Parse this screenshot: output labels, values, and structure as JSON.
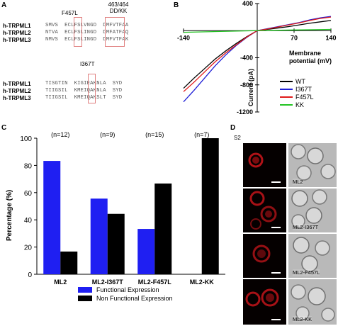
{
  "panels": {
    "a": "A",
    "b": "B",
    "c": "C",
    "d": "D"
  },
  "panel_a": {
    "mut1": "F457L",
    "mut2_l1": "463/464",
    "mut2_l2": "DD/KK",
    "mut3": "I367T",
    "block1": [
      {
        "name": "h-TRPML1",
        "seq": "SMVS  ECLFSLVNGD  DMFVTFAA"
      },
      {
        "name": "h-TRPML2",
        "seq": "NTVA  ECLFSLINGD  DMFATFAQ"
      },
      {
        "name": "h-TRPML3",
        "seq": "NMVS  ECLFSLINGD  DMFVTFAK"
      }
    ],
    "block2": [
      {
        "name": "h-TRPML1",
        "seq": "TISGTIN  KIGIEAKNLA  SYD"
      },
      {
        "name": "h-TRPML2",
        "seq": "TIIGSIL  KMEIQAKNLA  SYD"
      },
      {
        "name": "h-TRPML3",
        "seq": "TIIGSIL  KMEIQAKSLT  SYD"
      }
    ]
  },
  "panel_b": {
    "chart_data": {
      "type": "line",
      "xlabel": "Membrane potential (mV)",
      "ylabel": "Current (pA)",
      "xlim": [
        -140,
        140
      ],
      "ylim": [
        -1200,
        400
      ],
      "x_ticks": [
        -140,
        70,
        140
      ],
      "y_ticks": [
        400,
        -400,
        -800,
        -1200
      ],
      "series": [
        {
          "name": "WT",
          "color": "#000000",
          "x": [
            -140,
            -120,
            -100,
            -80,
            -60,
            -40,
            -20,
            0,
            20,
            40,
            60,
            80,
            100,
            120,
            140
          ],
          "y": [
            -850,
            -700,
            -560,
            -420,
            -300,
            -190,
            -90,
            0,
            20,
            40,
            60,
            85,
            110,
            130,
            150
          ]
        },
        {
          "name": "I367T",
          "color": "#1f1fd6",
          "x": [
            -140,
            -120,
            -100,
            -80,
            -60,
            -40,
            -20,
            0,
            20,
            40,
            60,
            80,
            100,
            120,
            140
          ],
          "y": [
            -1050,
            -880,
            -700,
            -520,
            -360,
            -220,
            -100,
            0,
            30,
            60,
            90,
            120,
            160,
            190,
            210
          ]
        },
        {
          "name": "F457L",
          "color": "#e01a1a",
          "x": [
            -140,
            -120,
            -100,
            -80,
            -60,
            -40,
            -20,
            0,
            20,
            40,
            60,
            80,
            100,
            120,
            140
          ],
          "y": [
            -900,
            -760,
            -610,
            -460,
            -330,
            -210,
            -95,
            0,
            25,
            55,
            85,
            115,
            150,
            180,
            200
          ]
        },
        {
          "name": "KK",
          "color": "#22c322",
          "x": [
            -140,
            -70,
            0,
            70,
            140
          ],
          "y": [
            -25,
            -12,
            0,
            10,
            18
          ]
        }
      ]
    }
  },
  "panel_c": {
    "chart_data": {
      "type": "bar",
      "categories": [
        "ML2",
        "ML2-I367T",
        "ML2-F457L",
        "ML2-KK"
      ],
      "n_labels": [
        "(n=12)",
        "(n=9)",
        "(n=15)",
        "(n=7)"
      ],
      "ylabel": "Percentage (%)",
      "ylim": [
        0,
        100
      ],
      "y_ticks": [
        0,
        20,
        40,
        60,
        80,
        100
      ],
      "series": [
        {
          "name": "Functional Expression",
          "color": "#1f1ff2",
          "values": [
            83.3,
            55.6,
            33.3,
            0
          ]
        },
        {
          "name": "Non Functional Expression",
          "color": "#000000",
          "values": [
            16.7,
            44.4,
            66.7,
            100
          ]
        }
      ]
    }
  },
  "panel_d": {
    "tag": "S2",
    "rows": [
      {
        "label": "ML2"
      },
      {
        "label": "ML2-I367T"
      },
      {
        "label": "ML2-F457L"
      },
      {
        "label": "ML2-KK"
      }
    ]
  }
}
